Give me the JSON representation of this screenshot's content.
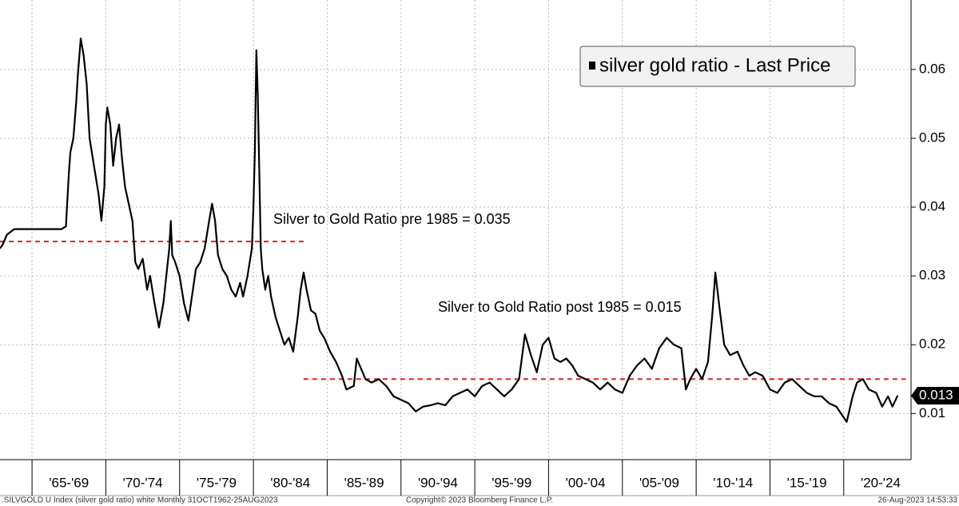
{
  "chart_data": {
    "type": "line",
    "legend": "silver gold ratio - Last Price",
    "footer": {
      "left": ".SILVGOLD U Index (silver gold ratio) white  Monthly 31OCT1962-25AUG2023",
      "center": "Copyright© 2023 Bloomberg Finance L.P.",
      "right": "26-Aug-2023 14:53:33"
    },
    "xlim": [
      1962.83,
      2024.56
    ],
    "ylim": [
      0.0033,
      0.0701
    ],
    "yticks": [
      0.01,
      0.02,
      0.03,
      0.04,
      0.05,
      0.06
    ],
    "xgrid": [
      1965,
      1970,
      1975,
      1980,
      1985,
      1990,
      1995,
      2000,
      2005,
      2010,
      2015,
      2020
    ],
    "xticks": [
      {
        "value": 1967.5,
        "label": "'65-'69"
      },
      {
        "value": 1972.5,
        "label": "'70-'74"
      },
      {
        "value": 1977.5,
        "label": "'75-'79"
      },
      {
        "value": 1982.5,
        "label": "'80-'84"
      },
      {
        "value": 1987.5,
        "label": "'85-'89"
      },
      {
        "value": 1992.5,
        "label": "'90-'94"
      },
      {
        "value": 1997.5,
        "label": "'95-'99"
      },
      {
        "value": 2002.5,
        "label": "'00-'04"
      },
      {
        "value": 2007.5,
        "label": "'05-'09"
      },
      {
        "value": 2012.5,
        "label": "'10-'14"
      },
      {
        "value": 2017.5,
        "label": "'15-'19"
      },
      {
        "value": 2022.5,
        "label": "'20-'24"
      }
    ],
    "grid": true,
    "last_price": {
      "value": 0.0126,
      "label": "0.013"
    },
    "annotations": [
      {
        "text": "Silver to Gold Ratio pre 1985 = 0.035",
        "value": 0.035,
        "x": [
          1962.83,
          1983.4
        ],
        "color": "#e02020"
      },
      {
        "text": "Silver to Gold Ratio post 1985 = 0.015",
        "value": 0.015,
        "x": [
          1983.4,
          2024.2
        ],
        "color": "#e02020"
      }
    ],
    "series": [
      {
        "name": "silver gold ratio - Last Price",
        "color": "#000000",
        "x": [
          1962.83,
          1963.0,
          1963.3,
          1963.8,
          1966.0,
          1967.0,
          1967.3,
          1967.5,
          1967.6,
          1967.8,
          1968.0,
          1968.1,
          1968.3,
          1968.5,
          1968.7,
          1968.9,
          1969.2,
          1969.5,
          1969.7,
          1969.9,
          1970.0,
          1970.1,
          1970.3,
          1970.5,
          1970.7,
          1970.9,
          1971.1,
          1971.3,
          1971.6,
          1971.8,
          1972.0,
          1972.2,
          1972.5,
          1972.8,
          1973.0,
          1973.3,
          1973.6,
          1973.9,
          1974.1,
          1974.3,
          1974.4,
          1974.5,
          1974.7,
          1975.0,
          1975.3,
          1975.6,
          1975.9,
          1976.1,
          1976.4,
          1976.7,
          1977.0,
          1977.2,
          1977.4,
          1977.6,
          1977.9,
          1978.2,
          1978.5,
          1978.8,
          1979.1,
          1979.3,
          1979.6,
          1979.9,
          1980.0,
          1980.1,
          1980.2,
          1980.3,
          1980.4,
          1980.5,
          1980.6,
          1980.8,
          1981.0,
          1981.2,
          1981.5,
          1981.8,
          1982.1,
          1982.4,
          1982.7,
          1983.0,
          1983.2,
          1983.4,
          1983.6,
          1983.9,
          1984.2,
          1984.5,
          1984.8,
          1985.2,
          1985.6,
          1986.0,
          1986.3,
          1986.8,
          1987.0,
          1987.3,
          1987.6,
          1988.0,
          1988.5,
          1989.0,
          1989.5,
          1990.0,
          1990.5,
          1991.0,
          1991.5,
          1992.0,
          1992.5,
          1993.0,
          1993.5,
          1994.0,
          1994.5,
          1995.0,
          1995.5,
          1996.0,
          1996.5,
          1997.0,
          1997.5,
          1998.0,
          1998.4,
          1998.8,
          1999.2,
          1999.6,
          2000.0,
          2000.4,
          2000.8,
          2001.2,
          2001.6,
          2002.0,
          2002.5,
          2003.0,
          2003.5,
          2004.0,
          2004.5,
          2005.0,
          2005.5,
          2006.0,
          2006.5,
          2007.0,
          2007.5,
          2008.0,
          2008.5,
          2009.0,
          2009.3,
          2009.6,
          2010.0,
          2010.4,
          2010.8,
          2011.1,
          2011.3,
          2011.6,
          2011.9,
          2012.3,
          2012.8,
          2013.2,
          2013.6,
          2014.0,
          2014.5,
          2015.0,
          2015.5,
          2016.0,
          2016.5,
          2017.0,
          2017.5,
          2018.0,
          2018.5,
          2019.0,
          2019.5,
          2020.2,
          2020.6,
          2020.9,
          2021.3,
          2021.7,
          2022.2,
          2022.6,
          2023.0,
          2023.3,
          2023.65
        ],
        "values": [
          0.034,
          0.0345,
          0.036,
          0.0368,
          0.0368,
          0.0368,
          0.0372,
          0.045,
          0.048,
          0.05,
          0.0555,
          0.059,
          0.0645,
          0.062,
          0.058,
          0.05,
          0.046,
          0.042,
          0.038,
          0.043,
          0.052,
          0.0545,
          0.052,
          0.046,
          0.05,
          0.052,
          0.047,
          0.043,
          0.04,
          0.038,
          0.032,
          0.031,
          0.0325,
          0.028,
          0.03,
          0.026,
          0.0225,
          0.026,
          0.03,
          0.034,
          0.038,
          0.033,
          0.032,
          0.03,
          0.026,
          0.0235,
          0.028,
          0.031,
          0.032,
          0.034,
          0.038,
          0.0405,
          0.038,
          0.033,
          0.031,
          0.03,
          0.028,
          0.027,
          0.029,
          0.027,
          0.03,
          0.034,
          0.04,
          0.048,
          0.0628,
          0.056,
          0.045,
          0.034,
          0.031,
          0.028,
          0.03,
          0.027,
          0.024,
          0.022,
          0.02,
          0.021,
          0.019,
          0.024,
          0.028,
          0.0305,
          0.028,
          0.025,
          0.0245,
          0.022,
          0.021,
          0.019,
          0.0175,
          0.0155,
          0.0135,
          0.014,
          0.018,
          0.0165,
          0.015,
          0.0145,
          0.015,
          0.014,
          0.0125,
          0.012,
          0.0115,
          0.0103,
          0.011,
          0.0112,
          0.0115,
          0.0112,
          0.0125,
          0.013,
          0.0135,
          0.0125,
          0.014,
          0.0145,
          0.0135,
          0.0125,
          0.0135,
          0.015,
          0.0215,
          0.0185,
          0.016,
          0.02,
          0.021,
          0.018,
          0.0175,
          0.018,
          0.017,
          0.0155,
          0.015,
          0.0145,
          0.0135,
          0.0145,
          0.0135,
          0.013,
          0.0155,
          0.017,
          0.018,
          0.0165,
          0.0195,
          0.021,
          0.02,
          0.0195,
          0.0135,
          0.015,
          0.0165,
          0.015,
          0.0175,
          0.0245,
          0.0305,
          0.025,
          0.02,
          0.0185,
          0.019,
          0.017,
          0.0155,
          0.016,
          0.0155,
          0.0135,
          0.013,
          0.0145,
          0.015,
          0.014,
          0.013,
          0.0125,
          0.0125,
          0.0115,
          0.011,
          0.0088,
          0.0125,
          0.0145,
          0.015,
          0.0135,
          0.013,
          0.011,
          0.0125,
          0.011,
          0.0126
        ]
      }
    ]
  }
}
